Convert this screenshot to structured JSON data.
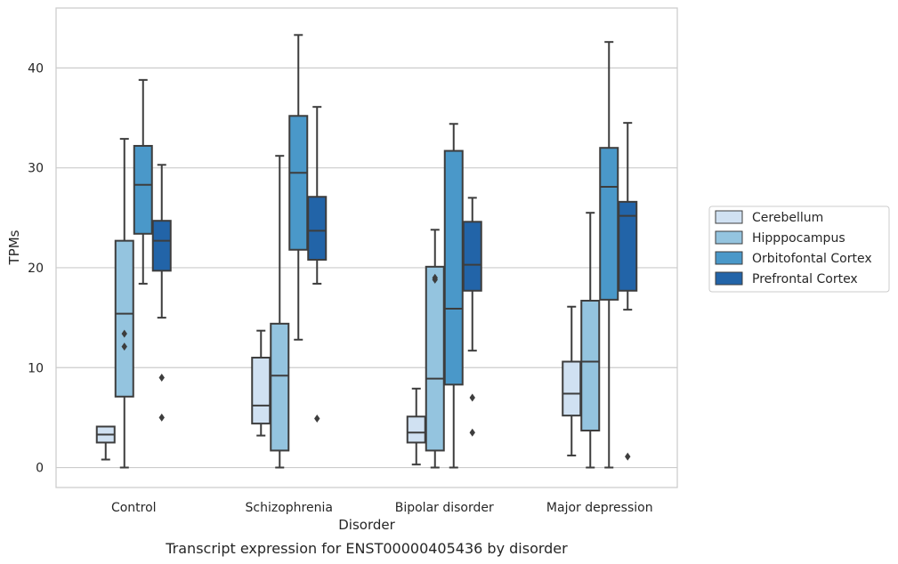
{
  "chart_data": {
    "type": "box",
    "title": "Transcript expression for ENST00000405436 by disorder",
    "xlabel": "Disorder",
    "ylabel": "TPMs",
    "ylim": [
      -2,
      46
    ],
    "yticks": [
      0,
      10,
      20,
      30,
      40
    ],
    "grid": "horizontal",
    "legend_position": "right",
    "categories": [
      "Control",
      "Schizophrenia",
      "Bipolar disorder",
      "Major depression"
    ],
    "series": [
      {
        "name": "Cerebellum",
        "color": "#d0e1f2",
        "boxes": [
          {
            "whislo": 0.8,
            "q1": 2.5,
            "med": 3.3,
            "q3": 4.1,
            "whishi": 4.1,
            "fliers": []
          },
          {
            "whislo": 3.2,
            "q1": 4.4,
            "med": 6.2,
            "q3": 11.0,
            "whishi": 13.7,
            "fliers": []
          },
          {
            "whislo": 0.3,
            "q1": 2.5,
            "med": 3.5,
            "q3": 5.1,
            "whishi": 7.9,
            "fliers": []
          },
          {
            "whislo": 1.2,
            "q1": 5.2,
            "med": 7.4,
            "q3": 10.6,
            "whishi": 16.1,
            "fliers": []
          }
        ]
      },
      {
        "name": "Hipppocampus",
        "color": "#94c4df",
        "boxes": [
          {
            "whislo": 0.0,
            "q1": 7.1,
            "med": 15.4,
            "q3": 22.7,
            "whishi": 32.9,
            "fliers": [
              12.1,
              13.4
            ]
          },
          {
            "whislo": 0.0,
            "q1": 1.7,
            "med": 9.2,
            "q3": 14.4,
            "whishi": 31.2,
            "fliers": []
          },
          {
            "whislo": 0.0,
            "q1": 1.7,
            "med": 8.9,
            "q3": 20.1,
            "whishi": 23.8,
            "fliers": [
              18.8,
              19.0
            ]
          },
          {
            "whislo": 0.0,
            "q1": 3.7,
            "med": 10.6,
            "q3": 16.7,
            "whishi": 25.5,
            "fliers": []
          }
        ]
      },
      {
        "name": "Orbitofontal Cortex",
        "color": "#4a98c9",
        "boxes": [
          {
            "whislo": 18.4,
            "q1": 23.4,
            "med": 28.3,
            "q3": 32.2,
            "whishi": 38.8,
            "fliers": []
          },
          {
            "whislo": 12.8,
            "q1": 21.8,
            "med": 29.5,
            "q3": 35.2,
            "whishi": 43.3,
            "fliers": []
          },
          {
            "whislo": 0.0,
            "q1": 8.3,
            "med": 15.9,
            "q3": 31.7,
            "whishi": 34.4,
            "fliers": []
          },
          {
            "whislo": 0.0,
            "q1": 16.8,
            "med": 28.1,
            "q3": 32.0,
            "whishi": 42.6,
            "fliers": []
          }
        ]
      },
      {
        "name": "Prefrontal Cortex",
        "color": "#2264a8",
        "boxes": [
          {
            "whislo": 15.0,
            "q1": 19.7,
            "med": 22.7,
            "q3": 24.7,
            "whishi": 30.3,
            "fliers": [
              5.0,
              9.0
            ]
          },
          {
            "whislo": 18.4,
            "q1": 20.8,
            "med": 23.7,
            "q3": 27.1,
            "whishi": 36.1,
            "fliers": [
              4.9
            ]
          },
          {
            "whislo": 11.7,
            "q1": 17.7,
            "med": 20.3,
            "q3": 24.6,
            "whishi": 27.0,
            "fliers": [
              3.5,
              7.0
            ]
          },
          {
            "whislo": 15.8,
            "q1": 17.7,
            "med": 25.2,
            "q3": 26.6,
            "whishi": 34.5,
            "fliers": [
              1.1
            ]
          }
        ]
      }
    ]
  }
}
